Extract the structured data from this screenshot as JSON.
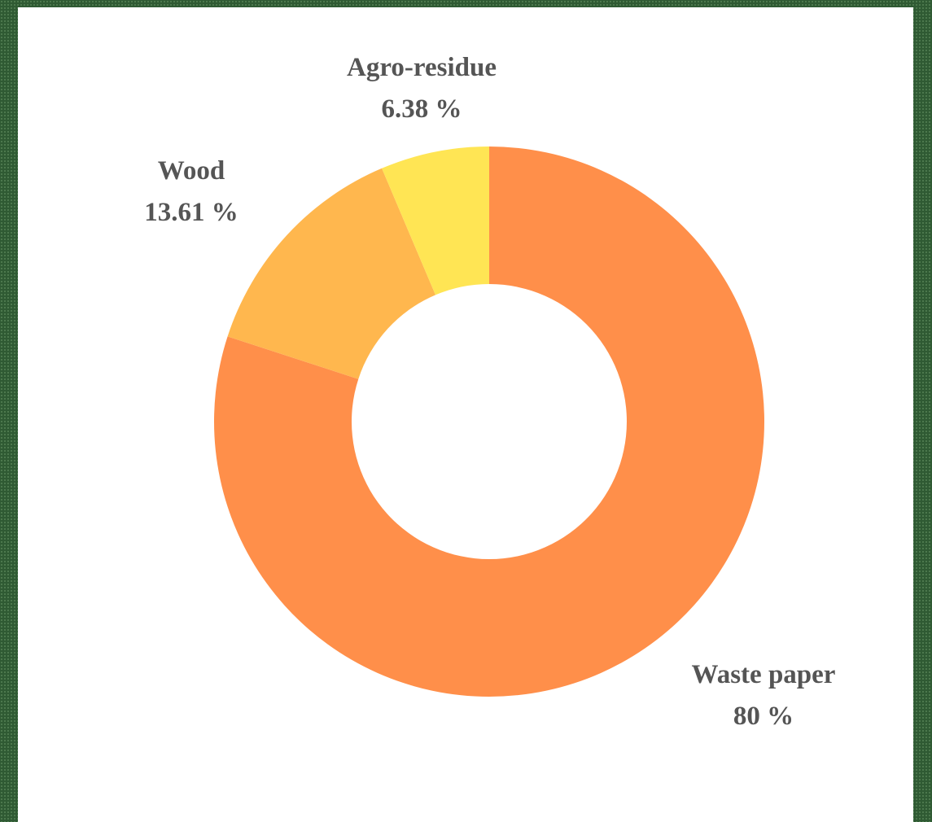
{
  "chart_data": {
    "type": "pie",
    "variant": "donut",
    "title": "",
    "legend": "none",
    "slices": [
      {
        "label": "Waste paper",
        "value": 80,
        "value_label": "80 %",
        "color": "#ff8f4a"
      },
      {
        "label": "Wood",
        "value": 13.61,
        "value_label": "13.61 %",
        "color": "#ffb74e"
      },
      {
        "label": "Agro-residue",
        "value": 6.38,
        "value_label": "6.38 %",
        "color": "#ffe554"
      }
    ]
  }
}
